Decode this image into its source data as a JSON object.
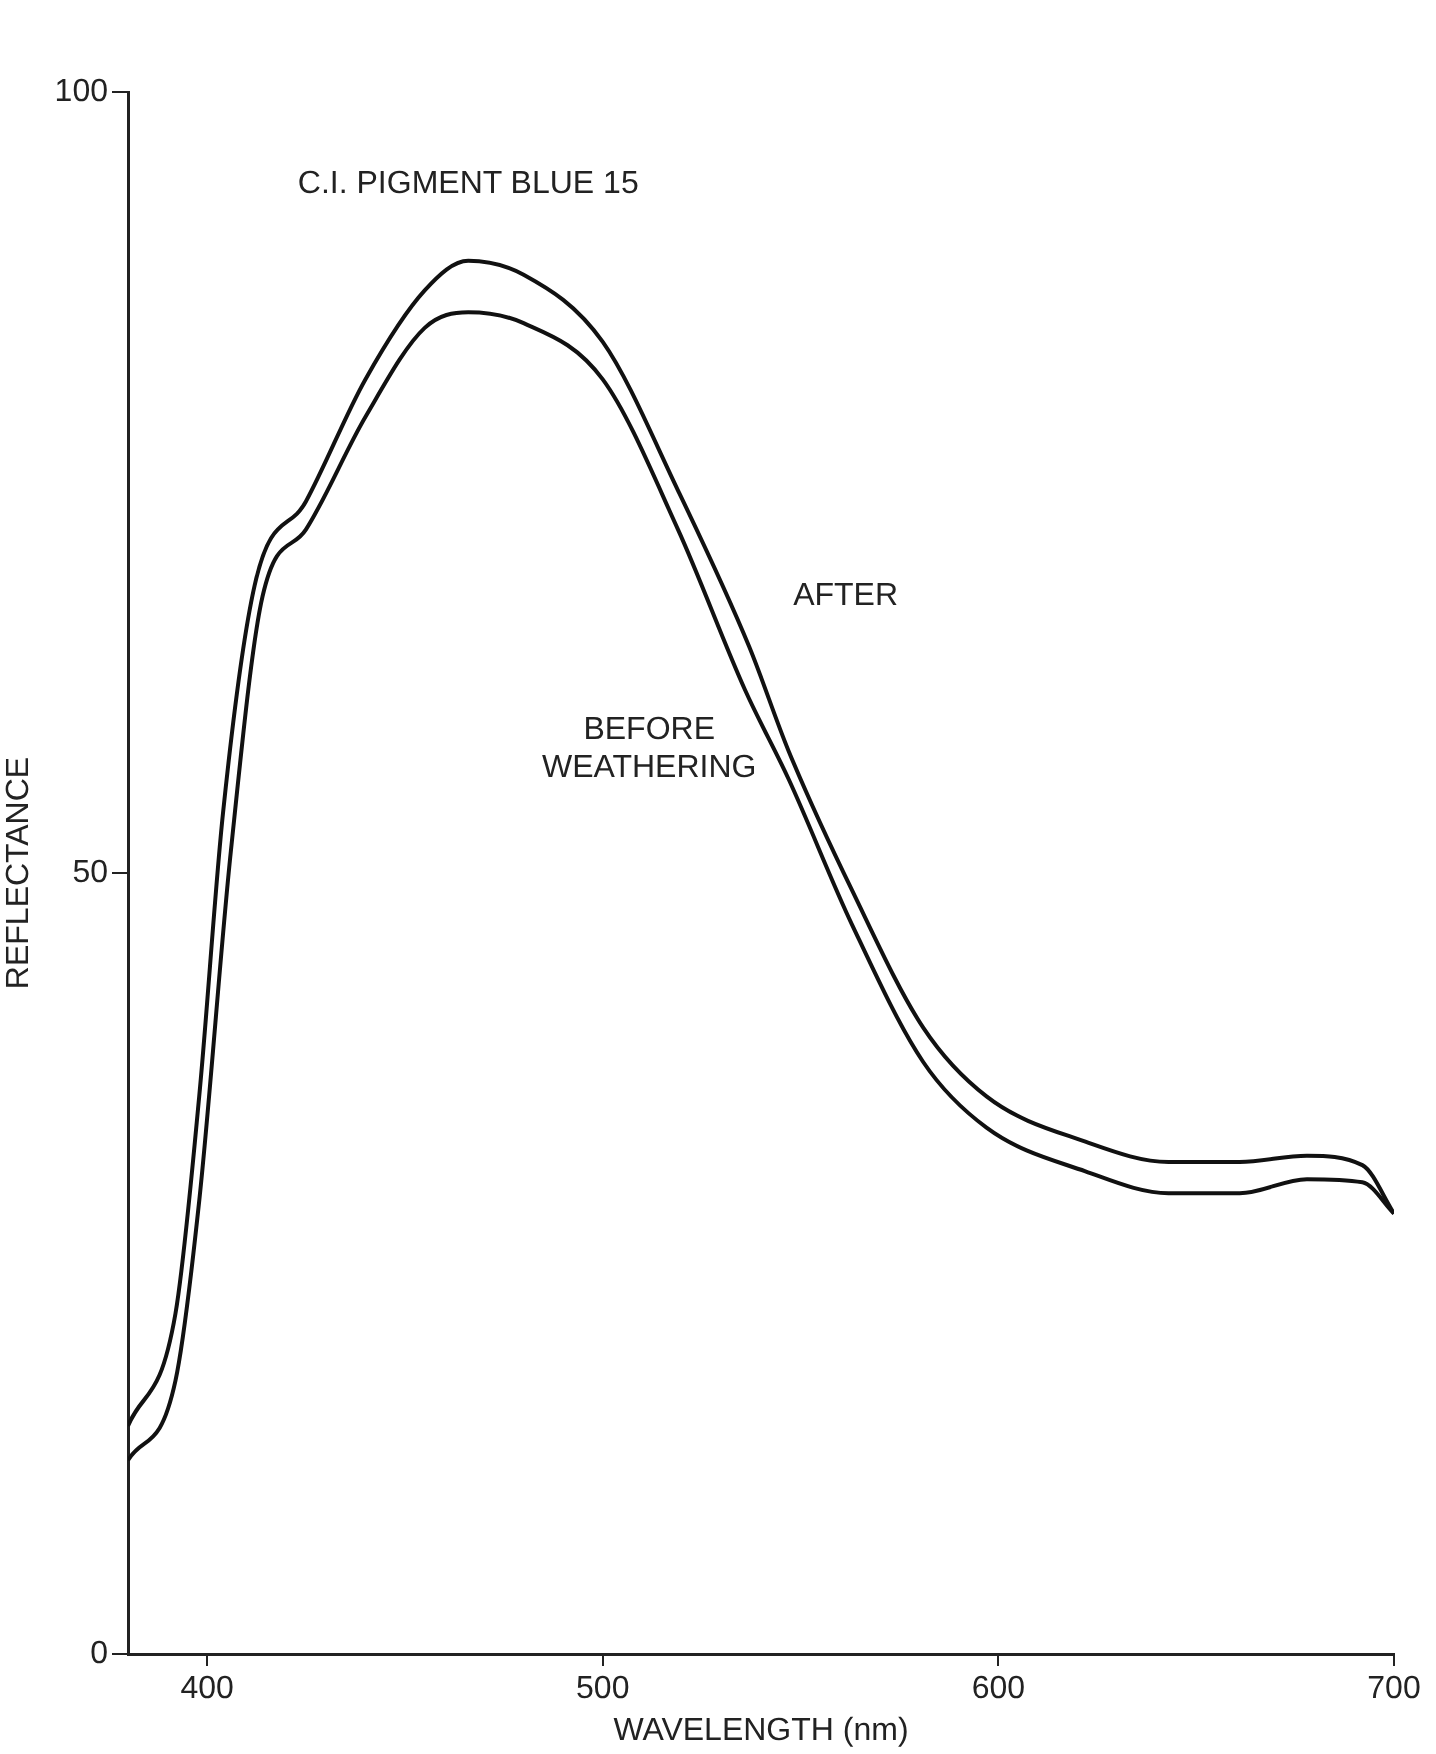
{
  "chart_data": {
    "type": "line",
    "title": "C.I. PIGMENT BLUE 15",
    "xlabel": "WAVELENGTH (nm)",
    "ylabel": "REFLECTANCE",
    "xlim": [
      380,
      700
    ],
    "xticks": [
      400,
      500,
      600,
      700
    ],
    "ylim": [
      0,
      100
    ],
    "yticks": [
      0,
      50,
      100
    ],
    "grid": false,
    "legend": false,
    "series": [
      {
        "name": "AFTER",
        "color": "#111111",
        "x": [
          380,
          392,
          398,
          404,
          412,
          425,
          440,
          455,
          466,
          480,
          500,
          519,
          537,
          547,
          563,
          581,
          597,
          622,
          643,
          661,
          678,
          692,
          700
        ],
        "values": [
          14.6,
          21.8,
          35.7,
          53.8,
          68.4,
          73.8,
          81.6,
          87.3,
          89.2,
          88.3,
          84.0,
          74.5,
          64.5,
          57.8,
          48.9,
          40.1,
          35.7,
          32.8,
          31.5,
          31.5,
          31.9,
          31.3,
          28.2
        ]
      },
      {
        "name": "BEFORE WEATHERING",
        "color": "#111111",
        "x": [
          380,
          392,
          398,
          406,
          414,
          425,
          440,
          455,
          466,
          480,
          500,
          519,
          536,
          547,
          563,
          581,
          597,
          622,
          643,
          661,
          678,
          692,
          700
        ],
        "values": [
          12.4,
          17.5,
          29.0,
          51.4,
          67.7,
          72.0,
          79.2,
          84.9,
          85.9,
          85.2,
          81.6,
          72.0,
          61.7,
          56.0,
          46.7,
          37.9,
          33.7,
          30.9,
          29.5,
          29.5,
          30.4,
          30.2,
          28.2
        ]
      }
    ]
  }
}
